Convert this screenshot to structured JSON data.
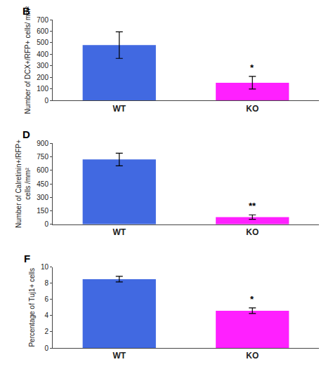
{
  "chart_data": [
    {
      "type": "bar",
      "title": "B",
      "categories": [
        "WT",
        "KO"
      ],
      "values": [
        480,
        155
      ],
      "errors": [
        115,
        55
      ],
      "colors": [
        "#4169E1",
        "#FF20FF"
      ],
      "ylabel": "Number of DCX+/RFP+ cells/ mm²",
      "ylim": [
        0,
        700
      ],
      "yticks": [
        0,
        100,
        200,
        300,
        400,
        500,
        600,
        700
      ],
      "annotations": [
        {
          "category": "KO",
          "text": "*"
        }
      ],
      "grid": false
    },
    {
      "type": "bar",
      "title": "D",
      "categories": [
        "WT",
        "KO"
      ],
      "values": [
        720,
        80
      ],
      "errors": [
        70,
        25
      ],
      "colors": [
        "#4169E1",
        "#FF20FF"
      ],
      "ylabel": "Number of Calretinin+/RFP+\ncells /mm²",
      "ylim": [
        0,
        900
      ],
      "yticks": [
        0,
        150,
        300,
        450,
        600,
        750,
        900
      ],
      "annotations": [
        {
          "category": "KO",
          "text": "**"
        }
      ],
      "grid": false
    },
    {
      "type": "bar",
      "title": "F",
      "categories": [
        "WT",
        "KO"
      ],
      "values": [
        8.5,
        4.6
      ],
      "errors": [
        0.35,
        0.35
      ],
      "colors": [
        "#4169E1",
        "#FF20FF"
      ],
      "ylabel": "Percentage of Tuj1+ cells",
      "ylim": [
        0,
        10
      ],
      "yticks": [
        0,
        2,
        4,
        6,
        8,
        10
      ],
      "annotations": [
        {
          "category": "KO",
          "text": "*"
        }
      ],
      "grid": false
    }
  ]
}
